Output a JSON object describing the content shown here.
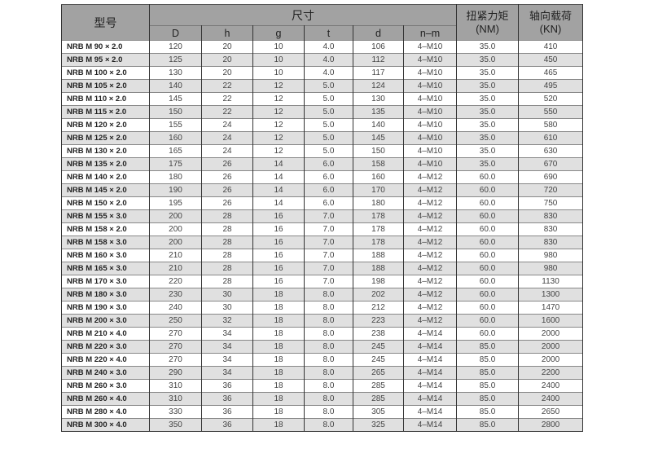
{
  "headers": {
    "model": "型号",
    "dimensions": "尺寸",
    "torque": "扭紧力矩",
    "torque_unit": "(NM)",
    "axial_load": "轴向载荷",
    "axial_load_unit": "(KN)",
    "sub": [
      "D",
      "h",
      "g",
      "t",
      "d",
      "n–m"
    ]
  },
  "rows": [
    [
      "NRB M 90 × 2.0",
      "120",
      "20",
      "10",
      "4.0",
      "106",
      "4–M10",
      "35.0",
      "410"
    ],
    [
      "NRB M 95 × 2.0",
      "125",
      "20",
      "10",
      "4.0",
      "112",
      "4–M10",
      "35.0",
      "450"
    ],
    [
      "NRB M 100 × 2.0",
      "130",
      "20",
      "10",
      "4.0",
      "117",
      "4–M10",
      "35.0",
      "465"
    ],
    [
      "NRB M 105 × 2.0",
      "140",
      "22",
      "12",
      "5.0",
      "124",
      "4–M10",
      "35.0",
      "495"
    ],
    [
      "NRB M 110 × 2.0",
      "145",
      "22",
      "12",
      "5.0",
      "130",
      "4–M10",
      "35.0",
      "520"
    ],
    [
      "NRB M 115 × 2.0",
      "150",
      "22",
      "12",
      "5.0",
      "135",
      "4–M10",
      "35.0",
      "550"
    ],
    [
      "NRB M 120 × 2.0",
      "155",
      "24",
      "12",
      "5.0",
      "140",
      "4–M10",
      "35.0",
      "580"
    ],
    [
      "NRB M 125 × 2.0",
      "160",
      "24",
      "12",
      "5.0",
      "145",
      "4–M10",
      "35.0",
      "610"
    ],
    [
      "NRB M 130 × 2.0",
      "165",
      "24",
      "12",
      "5.0",
      "150",
      "4–M10",
      "35.0",
      "630"
    ],
    [
      "NRB M 135 × 2.0",
      "175",
      "26",
      "14",
      "6.0",
      "158",
      "4–M10",
      "35.0",
      "670"
    ],
    [
      "NRB M 140 × 2.0",
      "180",
      "26",
      "14",
      "6.0",
      "160",
      "4–M12",
      "60.0",
      "690"
    ],
    [
      "NRB M 145 × 2.0",
      "190",
      "26",
      "14",
      "6.0",
      "170",
      "4–M12",
      "60.0",
      "720"
    ],
    [
      "NRB M 150 × 2.0",
      "195",
      "26",
      "14",
      "6.0",
      "180",
      "4–M12",
      "60.0",
      "750"
    ],
    [
      "NRB M 155 × 3.0",
      "200",
      "28",
      "16",
      "7.0",
      "178",
      "4–M12",
      "60.0",
      "830"
    ],
    [
      "NRB M 158 × 2.0",
      "200",
      "28",
      "16",
      "7.0",
      "178",
      "4–M12",
      "60.0",
      "830"
    ],
    [
      "NRB M 158 × 3.0",
      "200",
      "28",
      "16",
      "7.0",
      "178",
      "4–M12",
      "60.0",
      "830"
    ],
    [
      "NRB M 160 × 3.0",
      "210",
      "28",
      "16",
      "7.0",
      "188",
      "4–M12",
      "60.0",
      "980"
    ],
    [
      "NRB M 165 × 3.0",
      "210",
      "28",
      "16",
      "7.0",
      "188",
      "4–M12",
      "60.0",
      "980"
    ],
    [
      "NRB M 170 × 3.0",
      "220",
      "28",
      "16",
      "7.0",
      "198",
      "4–M12",
      "60.0",
      "1130"
    ],
    [
      "NRB M 180 × 3.0",
      "230",
      "30",
      "18",
      "8.0",
      "202",
      "4–M12",
      "60.0",
      "1300"
    ],
    [
      "NRB M 190 × 3.0",
      "240",
      "30",
      "18",
      "8.0",
      "212",
      "4–M12",
      "60.0",
      "1470"
    ],
    [
      "NRB M 200 × 3.0",
      "250",
      "32",
      "18",
      "8.0",
      "223",
      "4–M12",
      "60.0",
      "1600"
    ],
    [
      "NRB M 210 × 4.0",
      "270",
      "34",
      "18",
      "8.0",
      "238",
      "4–M14",
      "60.0",
      "2000"
    ],
    [
      "NRB M 220 × 3.0",
      "270",
      "34",
      "18",
      "8.0",
      "245",
      "4–M14",
      "85.0",
      "2000"
    ],
    [
      "NRB M 220 × 4.0",
      "270",
      "34",
      "18",
      "8.0",
      "245",
      "4–M14",
      "85.0",
      "2000"
    ],
    [
      "NRB M 240 × 3.0",
      "290",
      "34",
      "18",
      "8.0",
      "265",
      "4–M14",
      "85.0",
      "2200"
    ],
    [
      "NRB M 260 × 3.0",
      "310",
      "36",
      "18",
      "8.0",
      "285",
      "4–M14",
      "85.0",
      "2400"
    ],
    [
      "NRB M 260 × 4.0",
      "310",
      "36",
      "18",
      "8.0",
      "285",
      "4–M14",
      "85.0",
      "2400"
    ],
    [
      "NRB M 280 × 4.0",
      "330",
      "36",
      "18",
      "8.0",
      "305",
      "4–M14",
      "85.0",
      "2650"
    ],
    [
      "NRB M 300 × 4.0",
      "350",
      "36",
      "18",
      "8.0",
      "325",
      "4–M14",
      "85.0",
      "2800"
    ]
  ]
}
